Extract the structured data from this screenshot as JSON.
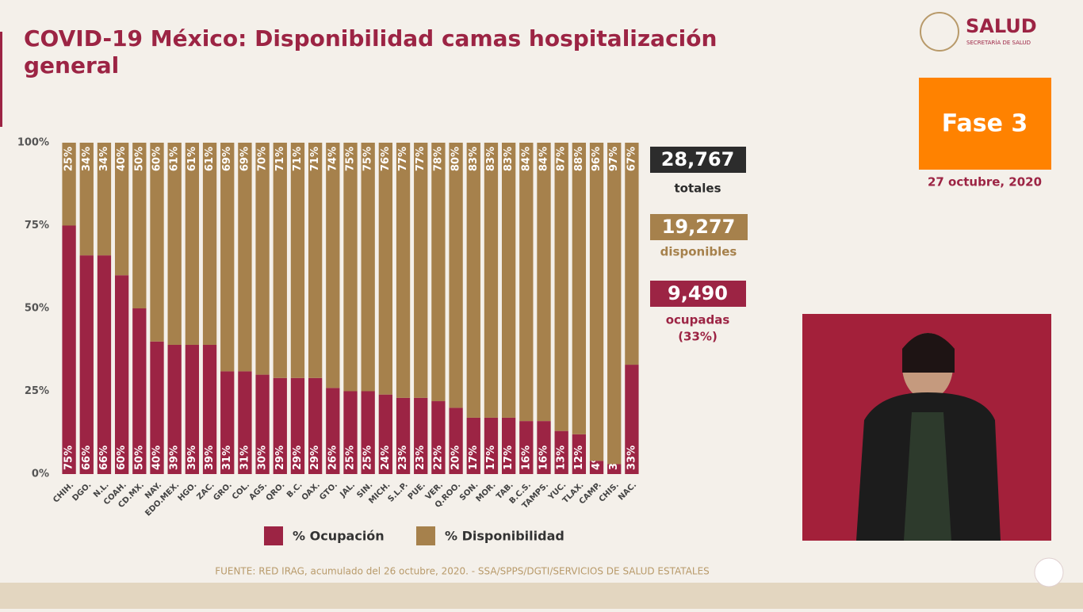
{
  "header": {
    "title_line1": "COVID-19 México: Disponibilidad camas hospitalización",
    "title_line2": "general",
    "logo_title": "SALUD",
    "logo_subtitle": "SECRETARÍA DE SALUD"
  },
  "phase": {
    "label": "Fase 3",
    "date": "27 octubre, 2020"
  },
  "summary": {
    "total": "28,767",
    "total_label": "totales",
    "available": "19,277",
    "available_label": "disponibles",
    "occupied": "9,490",
    "occupied_label": "ocupadas",
    "occupied_pct": "(33%)"
  },
  "footer": {
    "source": "FUENTE: RED IRAG, acumulado del 26 octubre, 2020. -  SSA/SPPS/DGTI/SERVICIOS DE SALUD ESTATALES"
  },
  "chart_data": {
    "type": "stacked_bar",
    "categories": [
      "CHIH.",
      "DGO.",
      "N.L.",
      "COAH.",
      "CD.MX.",
      "NAY.",
      "EDO.MEX.",
      "HGO.",
      "ZAC.",
      "GRO.",
      "COL.",
      "AGS.",
      "QRO.",
      "B.C.",
      "OAX.",
      "GTO.",
      "JAL.",
      "SIN.",
      "MICH.",
      "S.L.P.",
      "PUE.",
      "VER.",
      "Q.ROO.",
      "SON.",
      "MOR.",
      "TAB.",
      "B.C.S.",
      "TAMPS.",
      "YUC.",
      "TLAX.",
      "CAMP.",
      "CHIS.",
      "NAC."
    ],
    "series": [
      {
        "name": "% Ocupación",
        "color": "#9c2444",
        "values": [
          75,
          66,
          66,
          60,
          50,
          40,
          39,
          39,
          39,
          31,
          31,
          30,
          29,
          29,
          29,
          26,
          25,
          25,
          24,
          23,
          23,
          22,
          20,
          17,
          17,
          17,
          16,
          16,
          13,
          12,
          4,
          3,
          33
        ],
        "value_labels": [
          "75%",
          "66%",
          "66%",
          "60%",
          "50%",
          "40%",
          "39%",
          "39%",
          "39%",
          "31%",
          "31%",
          "30%",
          "29%",
          "29%",
          "29%",
          "26%",
          "25%",
          "25%",
          "24%",
          "23%",
          "23%",
          "22%",
          "20%",
          "17%",
          "17%",
          "17%",
          "16%",
          "16%",
          "13%",
          "12%",
          "4%",
          "3%",
          "33%"
        ]
      },
      {
        "name": "% Disponibilidad",
        "color": "#a6814c",
        "values": [
          25,
          34,
          34,
          40,
          50,
          60,
          61,
          61,
          61,
          69,
          69,
          70,
          71,
          71,
          71,
          74,
          75,
          75,
          76,
          77,
          77,
          78,
          80,
          83,
          83,
          83,
          84,
          84,
          87,
          88,
          96,
          97,
          67
        ],
        "value_labels": [
          "25%",
          "34%",
          "34%",
          "40%",
          "50%",
          "60%",
          "61%",
          "61%",
          "61%",
          "69%",
          "69%",
          "70%",
          "71%",
          "71%",
          "71%",
          "74%",
          "75%",
          "75%",
          "76%",
          "77%",
          "77%",
          "78%",
          "80%",
          "83%",
          "83%",
          "83%",
          "84%",
          "84%",
          "87%",
          "88%",
          "96%",
          "97%",
          "67%"
        ]
      }
    ],
    "ylim": [
      0,
      100
    ],
    "yticks": [
      {
        "value": 0,
        "label": "0%"
      },
      {
        "value": 25,
        "label": "25%"
      },
      {
        "value": 50,
        "label": "50%"
      },
      {
        "value": 75,
        "label": "75%"
      },
      {
        "value": 100,
        "label": "100%"
      }
    ],
    "grid": false
  }
}
